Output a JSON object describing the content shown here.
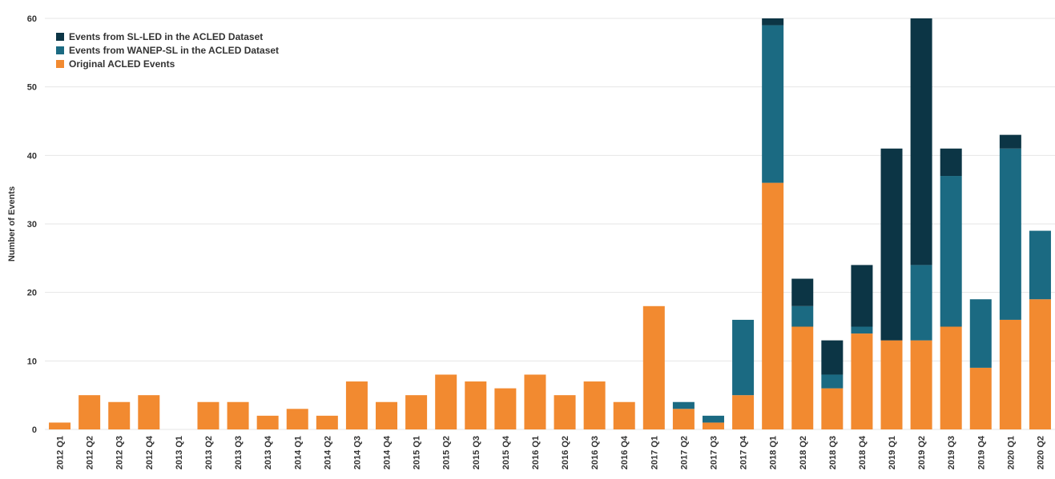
{
  "chart_data": {
    "type": "bar",
    "stacked": true,
    "title": "",
    "xlabel": "",
    "ylabel": "Number of Events",
    "ylim": [
      0,
      60
    ],
    "yticks": [
      0,
      10,
      20,
      30,
      40,
      50,
      60
    ],
    "grid": true,
    "legend_position": "top-left",
    "categories": [
      "2012 Q1",
      "2012 Q2",
      "2012 Q3",
      "2012 Q4",
      "2013 Q1",
      "2013 Q2",
      "2013 Q3",
      "2013 Q4",
      "2014 Q1",
      "2014 Q2",
      "2014 Q3",
      "2014 Q4",
      "2015 Q1",
      "2015 Q2",
      "2015 Q3",
      "2015 Q4",
      "2016 Q1",
      "2016 Q2",
      "2016 Q3",
      "2016 Q4",
      "2017 Q1",
      "2017 Q2",
      "2017 Q3",
      "2017 Q4",
      "2018 Q1",
      "2018 Q2",
      "2018 Q3",
      "2018 Q4",
      "2019 Q1",
      "2019 Q2",
      "2019 Q3",
      "2019 Q4",
      "2020 Q1",
      "2020 Q2"
    ],
    "series": [
      {
        "name": "Original ACLED Events",
        "color": "#f28a30",
        "values": [
          1,
          5,
          4,
          5,
          0,
          4,
          4,
          2,
          3,
          2,
          7,
          4,
          5,
          8,
          7,
          6,
          8,
          5,
          7,
          4,
          18,
          3,
          1,
          5,
          36,
          15,
          6,
          14,
          13,
          13,
          15,
          9,
          16,
          19
        ]
      },
      {
        "name": "Events from WANEP-SL in the ACLED Dataset",
        "color": "#1b6a82",
        "values": [
          0,
          0,
          0,
          0,
          0,
          0,
          0,
          0,
          0,
          0,
          0,
          0,
          0,
          0,
          0,
          0,
          0,
          0,
          0,
          0,
          0,
          1,
          1,
          11,
          23,
          3,
          2,
          1,
          0,
          11,
          22,
          10,
          25,
          10
        ]
      },
      {
        "name": "Events from SL-LED in the ACLED Dataset",
        "color": "#0c3545",
        "values": [
          0,
          0,
          0,
          0,
          0,
          0,
          0,
          0,
          0,
          0,
          0,
          0,
          0,
          0,
          0,
          0,
          0,
          0,
          0,
          0,
          0,
          0,
          0,
          0,
          1,
          4,
          5,
          9,
          28,
          36,
          4,
          0,
          2,
          0
        ]
      }
    ],
    "legend_order": [
      2,
      1,
      0
    ]
  }
}
